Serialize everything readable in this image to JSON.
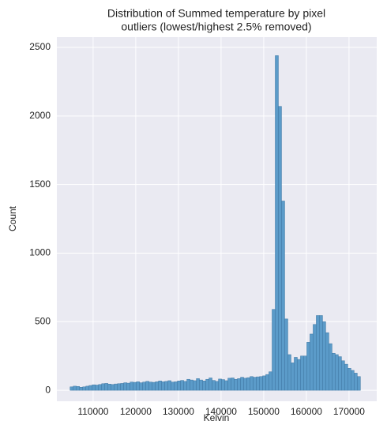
{
  "chart_data": {
    "type": "histogram",
    "title": [
      "Distribution of Summed temperature by pixel",
      "outliers (lowest/highest 2.5% removed)"
    ],
    "x_label": "Kelvin",
    "y_label": "Count",
    "color": "#5b9bc9",
    "edge_color": "#3f77a3",
    "grid": true,
    "bins": [
      104600,
      105340,
      106080,
      106820,
      107560,
      108300,
      109040,
      109780,
      110520,
      111260,
      112000,
      112740,
      113480,
      114220,
      114960,
      115700,
      116440,
      117180,
      117920,
      118660,
      119400,
      120140,
      120880,
      121620,
      122360,
      123100,
      123840,
      124580,
      125320,
      126060,
      126800,
      127540,
      128280,
      129020,
      129760,
      130500,
      131240,
      131980,
      132720,
      133460,
      134200,
      134940,
      135680,
      136420,
      137160,
      137900,
      138640,
      139380,
      140120,
      140860,
      141600,
      142340,
      143080,
      143820,
      144560,
      145300,
      146040,
      146780,
      147520,
      148260,
      149000,
      149740,
      150480,
      151220,
      151960,
      152700,
      153440,
      154180,
      154920,
      155660,
      156400,
      157140,
      157880,
      158620,
      159360,
      160100,
      160840,
      161580,
      162320,
      163060,
      163800,
      164540,
      165280,
      166020,
      166760,
      167500,
      168240,
      168980,
      169720,
      170460,
      171200,
      171940,
      172680
    ],
    "values": [
      25,
      30,
      28,
      22,
      25,
      30,
      35,
      40,
      38,
      42,
      48,
      50,
      45,
      42,
      46,
      48,
      50,
      55,
      52,
      60,
      58,
      62,
      55,
      60,
      65,
      60,
      58,
      62,
      68,
      62,
      65,
      70,
      60,
      62,
      68,
      72,
      65,
      80,
      75,
      70,
      85,
      75,
      68,
      80,
      90,
      72,
      65,
      82,
      78,
      70,
      88,
      90,
      80,
      85,
      95,
      88,
      92,
      100,
      95,
      98,
      100,
      105,
      115,
      135,
      590,
      2440,
      2070,
      1380,
      520,
      260,
      200,
      240,
      225,
      250,
      250,
      350,
      410,
      480,
      545,
      545,
      500,
      420,
      340,
      270,
      260,
      245,
      215,
      190,
      160,
      145,
      125,
      100
    ],
    "xlim": [
      101500,
      176500
    ],
    "ylim": [
      -80,
      2575
    ],
    "xticks": [
      110000,
      120000,
      130000,
      140000,
      150000,
      160000,
      170000
    ],
    "yticks": [
      0,
      500,
      1000,
      1500,
      2000,
      2500
    ]
  }
}
